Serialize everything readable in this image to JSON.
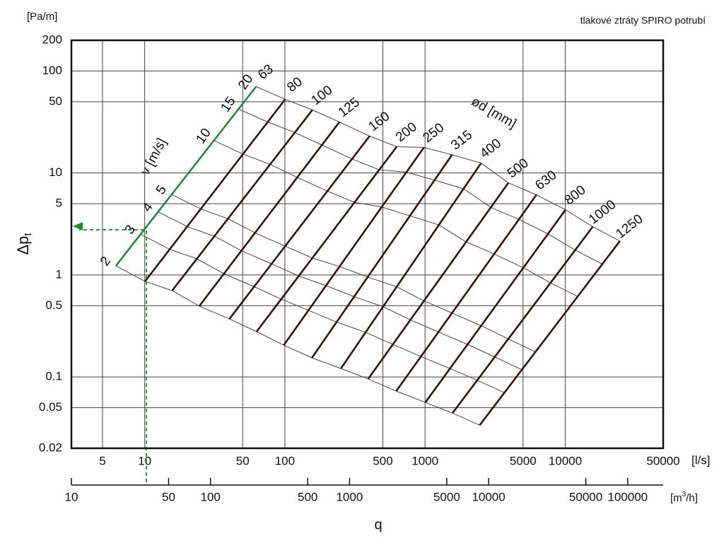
{
  "chart_data": {
    "type": "nomogram",
    "title": "tlakové ztráty SPIRO potrubí",
    "yunit": "[Pa/m]",
    "ylabel": "Δp",
    "ylabel_sub": "t",
    "xunit": "[l/s]",
    "x2unit": [
      "[m",
      "3",
      "/h]"
    ],
    "xlabel": "q",
    "velocity_title": "v [m/s]",
    "diameter_title": "ød [mm]",
    "xscale": "log",
    "yscale": "log",
    "grid": true,
    "xlim": [
      3,
      50000
    ],
    "xticks": [
      5,
      10,
      50,
      100,
      500,
      1000,
      5000,
      10000,
      50000
    ],
    "ylim": [
      0.02,
      200
    ],
    "yticks": [
      200,
      100,
      50,
      10,
      5,
      1,
      0.5,
      0.1,
      0.05,
      0.02
    ],
    "x2lim": [
      10,
      180000
    ],
    "x2ticks": [
      10,
      50,
      100,
      500,
      1000,
      5000,
      10000,
      50000,
      100000
    ],
    "velocities": [
      2,
      3,
      4,
      5,
      10,
      15,
      20
    ],
    "velocity_color": "#444444",
    "series": [
      {
        "name": "63",
        "color": "#1a8a3a",
        "x": [
          6.23,
          62.3
        ],
        "values": [
          1.23,
          70.3
        ]
      },
      {
        "name": "80",
        "color": "#3a1208",
        "x": [
          10.05,
          100.5
        ],
        "values": [
          0.866,
          52.8
        ]
      },
      {
        "name": "100",
        "color": "#3a1208",
        "x": [
          15.7,
          157
        ],
        "values": [
          0.703,
          41.5
        ]
      },
      {
        "name": "125",
        "color": "#3a1208",
        "x": [
          24.5,
          245
        ],
        "values": [
          0.495,
          31.6
        ]
      },
      {
        "name": "160",
        "color": "#3a1208",
        "x": [
          40.2,
          402
        ],
        "values": [
          0.371,
          23.0
        ]
      },
      {
        "name": "200",
        "color": "#3a1208",
        "x": [
          62.8,
          628
        ],
        "values": [
          0.278,
          18.1
        ]
      },
      {
        "name": "250",
        "color": "#3a1208",
        "x": [
          98.2,
          982
        ],
        "values": [
          0.205,
          17.8
        ]
      },
      {
        "name": "315",
        "color": "#3a1208",
        "x": [
          155.9,
          1559
        ],
        "values": [
          0.154,
          15.1
        ]
      },
      {
        "name": "400",
        "color": "#3a1208",
        "x": [
          251,
          2510
        ],
        "values": [
          0.121,
          12.5
        ]
      },
      {
        "name": "500",
        "color": "#3a1208",
        "x": [
          393,
          3930
        ],
        "values": [
          0.0957,
          8.0
        ]
      },
      {
        "name": "630",
        "color": "#3a1208",
        "x": [
          623,
          6230
        ],
        "values": [
          0.0727,
          6.1
        ]
      },
      {
        "name": "800",
        "color": "#3a1208",
        "x": [
          1005,
          10050
        ],
        "values": [
          0.0563,
          4.36
        ]
      },
      {
        "name": "1000",
        "color": "#3a1208",
        "x": [
          1571,
          15710
        ],
        "values": [
          0.0443,
          2.97
        ]
      },
      {
        "name": "1250",
        "color": "#3a1208",
        "x": [
          2454,
          24540
        ],
        "values": [
          0.0337,
          2.15
        ]
      }
    ]
  }
}
